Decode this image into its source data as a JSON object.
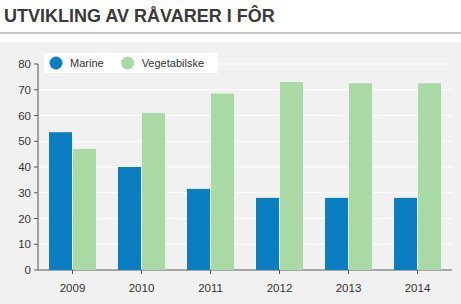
{
  "chart_data": {
    "type": "bar",
    "title": "UTVIKLING AV RÅVARER I FÔR",
    "categories": [
      "2009",
      "2010",
      "2011",
      "2012",
      "2013",
      "2014"
    ],
    "series": [
      {
        "name": "Marine",
        "color": "#0b7dc1",
        "values": [
          53.5,
          40,
          31.5,
          28,
          28,
          28
        ]
      },
      {
        "name": "Vegetabilske",
        "color": "#a9d9a5",
        "values": [
          47,
          61,
          68.5,
          73,
          72.5,
          72.5
        ]
      }
    ],
    "ylim": [
      0,
      80
    ],
    "yticks": [
      0,
      10,
      20,
      30,
      40,
      50,
      60,
      70,
      80
    ],
    "grid": true,
    "legend": "top-left"
  }
}
